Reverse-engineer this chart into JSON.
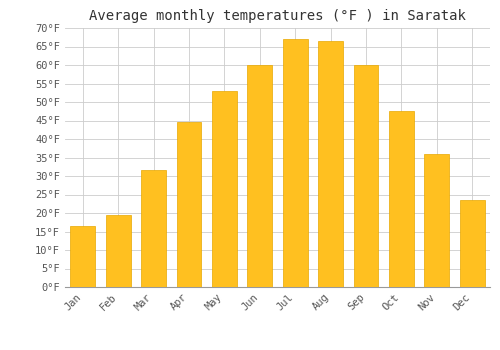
{
  "title": "Average monthly temperatures (°F ) in Saratak",
  "months": [
    "Jan",
    "Feb",
    "Mar",
    "Apr",
    "May",
    "Jun",
    "Jul",
    "Aug",
    "Sep",
    "Oct",
    "Nov",
    "Dec"
  ],
  "values": [
    16.5,
    19.5,
    31.5,
    44.5,
    53.0,
    60.0,
    67.0,
    66.5,
    60.0,
    47.5,
    36.0,
    23.5
  ],
  "bar_color": "#FFC020",
  "bar_edge_color": "#E8A800",
  "background_color": "#ffffff",
  "grid_color": "#cccccc",
  "ylim": [
    0,
    70
  ],
  "yticks": [
    0,
    5,
    10,
    15,
    20,
    25,
    30,
    35,
    40,
    45,
    50,
    55,
    60,
    65,
    70
  ],
  "ylabel_suffix": "°F",
  "title_fontsize": 10,
  "tick_fontsize": 7.5,
  "font_family": "monospace"
}
